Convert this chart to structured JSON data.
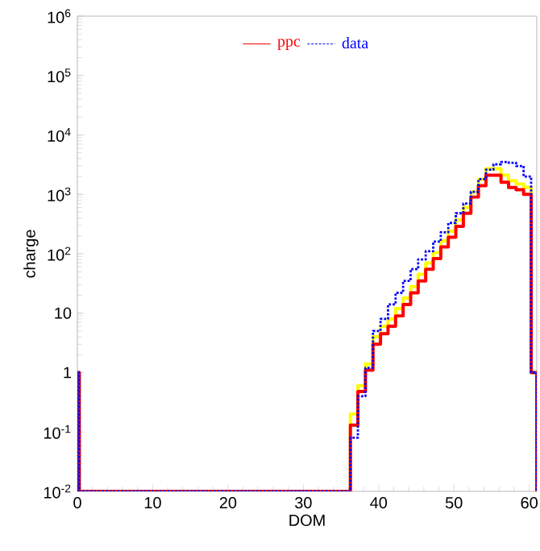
{
  "chart_data": {
    "type": "histogram",
    "xlabel": "DOM",
    "ylabel": "charge",
    "log": "y",
    "legend": "top",
    "bins": [
      0,
      0.25,
      1.25,
      2.25,
      3.25,
      4.25,
      5.25,
      6.25,
      7.25,
      8.25,
      9.25,
      10.25,
      11.25,
      12.25,
      13.25,
      14.25,
      15.25,
      16.25,
      17.25,
      18.25,
      19.25,
      20.25,
      21.25,
      22.25,
      23.25,
      24.25,
      25.25,
      26.25,
      27.25,
      28.25,
      29.25,
      30.25,
      31.25,
      32.25,
      33.25,
      34.25,
      35.25,
      36.25,
      37.25,
      38.25,
      39.25,
      40.25,
      41.25,
      42.25,
      43.25,
      44.25,
      45.25,
      46.25,
      47.25,
      48.25,
      49.25,
      50.25,
      51.25,
      52.25,
      53.25,
      54.25,
      55.25,
      56.25,
      57.25,
      58.25,
      59.25,
      60.25,
      61
    ],
    "series": [
      {
        "color": "#ffff00",
        "line_style": "solid",
        "values": [
          1,
          null,
          null,
          null,
          null,
          null,
          null,
          null,
          null,
          null,
          null,
          null,
          null,
          null,
          null,
          null,
          null,
          null,
          null,
          null,
          null,
          null,
          null,
          null,
          null,
          null,
          null,
          null,
          null,
          null,
          null,
          null,
          null,
          null,
          null,
          null,
          null,
          0.2,
          0.6,
          1.4,
          4,
          6,
          8,
          12,
          18,
          28,
          45,
          70,
          105,
          165,
          240,
          370,
          600,
          1100,
          1800,
          2700,
          2700,
          2100,
          1700,
          1500,
          1300,
          1
        ]
      },
      {
        "name": "ppc",
        "color": "#ff0000",
        "line_style": "solid",
        "values": [
          1,
          null,
          null,
          null,
          null,
          null,
          null,
          null,
          null,
          null,
          null,
          null,
          null,
          null,
          null,
          null,
          null,
          null,
          null,
          null,
          null,
          null,
          null,
          null,
          null,
          null,
          null,
          null,
          null,
          null,
          null,
          null,
          null,
          null,
          null,
          null,
          null,
          0.13,
          0.48,
          1.1,
          3,
          4.5,
          6,
          9,
          14,
          22,
          35,
          55,
          83,
          130,
          190,
          290,
          480,
          900,
          1400,
          2100,
          2100,
          1600,
          1300,
          1200,
          1000,
          1
        ]
      },
      {
        "name": "data",
        "color": "#0000ff",
        "line_style": "dotted",
        "values": [
          1,
          null,
          null,
          null,
          null,
          null,
          null,
          null,
          null,
          null,
          null,
          null,
          null,
          null,
          null,
          null,
          null,
          null,
          null,
          null,
          null,
          null,
          null,
          null,
          null,
          null,
          null,
          null,
          null,
          null,
          null,
          null,
          null,
          null,
          null,
          null,
          null,
          0.08,
          0.4,
          1.2,
          5,
          8,
          14,
          22,
          35,
          55,
          80,
          110,
          160,
          230,
          330,
          480,
          700,
          1100,
          1800,
          2600,
          3200,
          3500,
          3400,
          3000,
          2000,
          1
        ]
      }
    ],
    "xlim": [
      0,
      61
    ],
    "xticks": [
      0,
      10,
      20,
      30,
      40,
      50,
      60
    ],
    "ylim": [
      0.01,
      1000000
    ],
    "yticks": [
      {
        "value": 0.01,
        "label": "10$^{-2}$"
      },
      {
        "value": 0.1,
        "label": "10$^{-1}$"
      },
      {
        "value": 1,
        "label": "1"
      },
      {
        "value": 10,
        "label": "10"
      },
      {
        "value": 100,
        "label": "10$^{2}$"
      },
      {
        "value": 1000,
        "label": "10$^{3}$"
      },
      {
        "value": 10000,
        "label": "10$^{4}$"
      },
      {
        "value": 100000,
        "label": "10$^{5}$"
      },
      {
        "value": 1000000,
        "label": "10$^{6}$"
      }
    ]
  }
}
